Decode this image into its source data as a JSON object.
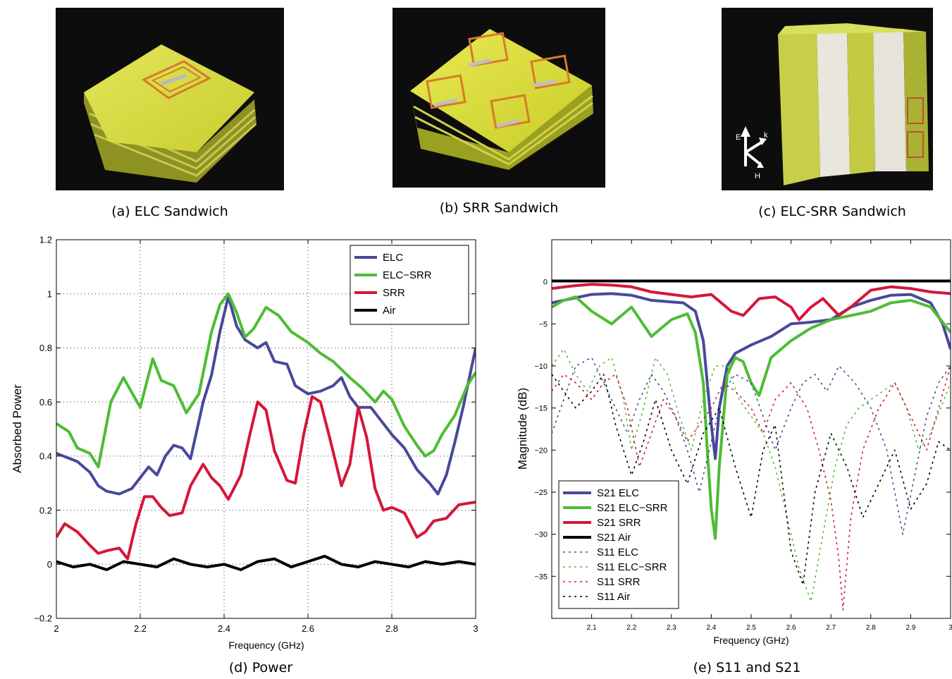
{
  "captions": {
    "a": "(a) ELC Sandwich",
    "b": "(b) SRR Sandwich",
    "c": "(c) ELC-SRR Sandwich",
    "d": "(d) Power",
    "e": "(e) S11 and S21"
  },
  "photo_c_axes": {
    "e": "E",
    "k": "k",
    "h": "H"
  },
  "chart_data": [
    {
      "type": "line",
      "xlabel": "Frequency (GHz)",
      "ylabel": "Absorbed Power",
      "xlim": [
        2,
        3
      ],
      "ylim": [
        -0.2,
        1.2
      ],
      "xticks": [
        2,
        2.2,
        2.4,
        2.6,
        2.8,
        3
      ],
      "yticks": [
        -0.2,
        0,
        0.2,
        0.4,
        0.6,
        0.8,
        1,
        1.2
      ],
      "xtick_labels": [
        "2",
        "2.2",
        "2.4",
        "2.6",
        "2.8",
        "3"
      ],
      "ytick_labels": [
        "−0.2",
        "0",
        "0.2",
        "0.4",
        "0.6",
        "0.8",
        "1",
        "1.2"
      ],
      "grid": "dotted",
      "legend": "top-right",
      "series": [
        {
          "name": "ELC",
          "color": "#48499b",
          "style": "solid",
          "x": [
            2.0,
            2.05,
            2.08,
            2.1,
            2.12,
            2.15,
            2.18,
            2.2,
            2.22,
            2.24,
            2.26,
            2.28,
            2.3,
            2.32,
            2.35,
            2.37,
            2.39,
            2.41,
            2.43,
            2.45,
            2.48,
            2.5,
            2.52,
            2.55,
            2.57,
            2.6,
            2.63,
            2.66,
            2.68,
            2.7,
            2.72,
            2.75,
            2.78,
            2.8,
            2.83,
            2.86,
            2.89,
            2.91,
            2.93,
            2.95,
            2.97,
            3.0
          ],
          "y": [
            0.41,
            0.38,
            0.34,
            0.29,
            0.27,
            0.26,
            0.28,
            0.32,
            0.36,
            0.33,
            0.4,
            0.44,
            0.43,
            0.39,
            0.6,
            0.7,
            0.86,
            0.99,
            0.88,
            0.83,
            0.8,
            0.82,
            0.75,
            0.74,
            0.66,
            0.63,
            0.64,
            0.66,
            0.69,
            0.62,
            0.58,
            0.58,
            0.52,
            0.48,
            0.43,
            0.35,
            0.3,
            0.26,
            0.33,
            0.45,
            0.58,
            0.8
          ]
        },
        {
          "name": "ELC−SRR",
          "color": "#4dbd33",
          "style": "solid",
          "x": [
            2.0,
            2.03,
            2.05,
            2.08,
            2.1,
            2.13,
            2.16,
            2.2,
            2.23,
            2.25,
            2.28,
            2.31,
            2.34,
            2.37,
            2.39,
            2.41,
            2.43,
            2.45,
            2.47,
            2.5,
            2.53,
            2.56,
            2.6,
            2.63,
            2.66,
            2.7,
            2.73,
            2.76,
            2.78,
            2.8,
            2.83,
            2.86,
            2.88,
            2.9,
            2.92,
            2.95,
            2.98,
            3.0
          ],
          "y": [
            0.52,
            0.49,
            0.43,
            0.41,
            0.36,
            0.6,
            0.69,
            0.58,
            0.76,
            0.68,
            0.66,
            0.56,
            0.63,
            0.86,
            0.96,
            1.0,
            0.93,
            0.84,
            0.87,
            0.95,
            0.92,
            0.86,
            0.82,
            0.78,
            0.75,
            0.69,
            0.65,
            0.6,
            0.64,
            0.61,
            0.51,
            0.44,
            0.4,
            0.42,
            0.48,
            0.55,
            0.66,
            0.71
          ]
        },
        {
          "name": "SRR",
          "color": "#d41739",
          "style": "solid",
          "x": [
            2.0,
            2.02,
            2.05,
            2.08,
            2.1,
            2.12,
            2.15,
            2.17,
            2.19,
            2.21,
            2.23,
            2.25,
            2.27,
            2.3,
            2.32,
            2.35,
            2.37,
            2.39,
            2.41,
            2.44,
            2.46,
            2.48,
            2.5,
            2.52,
            2.55,
            2.57,
            2.59,
            2.61,
            2.63,
            2.65,
            2.68,
            2.7,
            2.72,
            2.74,
            2.76,
            2.78,
            2.8,
            2.83,
            2.86,
            2.88,
            2.9,
            2.93,
            2.96,
            3.0
          ],
          "y": [
            0.1,
            0.15,
            0.12,
            0.07,
            0.04,
            0.05,
            0.06,
            0.02,
            0.15,
            0.25,
            0.25,
            0.21,
            0.18,
            0.19,
            0.29,
            0.37,
            0.32,
            0.29,
            0.24,
            0.33,
            0.47,
            0.6,
            0.57,
            0.42,
            0.31,
            0.3,
            0.48,
            0.62,
            0.6,
            0.48,
            0.29,
            0.37,
            0.58,
            0.47,
            0.28,
            0.2,
            0.21,
            0.19,
            0.1,
            0.12,
            0.16,
            0.17,
            0.22,
            0.23
          ]
        },
        {
          "name": "Air",
          "color": "#000000",
          "style": "solid",
          "x": [
            2.0,
            2.04,
            2.08,
            2.12,
            2.16,
            2.2,
            2.24,
            2.28,
            2.32,
            2.36,
            2.4,
            2.44,
            2.48,
            2.52,
            2.56,
            2.6,
            2.64,
            2.68,
            2.72,
            2.76,
            2.8,
            2.84,
            2.88,
            2.92,
            2.96,
            3.0
          ],
          "y": [
            0.01,
            -0.01,
            0.0,
            -0.02,
            0.01,
            0.0,
            -0.01,
            0.02,
            0.0,
            -0.01,
            0.0,
            -0.02,
            0.01,
            0.02,
            -0.01,
            0.01,
            0.03,
            0.0,
            -0.01,
            0.01,
            0.0,
            -0.01,
            0.01,
            0.0,
            0.01,
            0.0
          ]
        }
      ]
    },
    {
      "type": "line",
      "xlabel": "Frequency (GHz)",
      "ylabel": "Magnitude (dB)",
      "xlim": [
        2,
        3
      ],
      "ylim": [
        -40,
        5
      ],
      "xticks": [
        2.1,
        2.2,
        2.3,
        2.4,
        2.5,
        2.6,
        2.7,
        2.8,
        2.9,
        3
      ],
      "yticks": [
        -35,
        -30,
        -25,
        -20,
        -15,
        -10,
        -5,
        0
      ],
      "xtick_labels": [
        "2.1",
        "2.2",
        "2.3",
        "2.4",
        "2.5",
        "2.6",
        "2.7",
        "2.8",
        "2.9",
        "3"
      ],
      "ytick_labels": [
        "−35",
        "−30",
        "−25",
        "−20",
        "−15",
        "−10",
        "−5",
        "0"
      ],
      "grid": "off",
      "legend": "bottom-left",
      "series": [
        {
          "name": "S21 ELC",
          "color": "#48499b",
          "style": "solid",
          "x": [
            2.0,
            2.05,
            2.1,
            2.15,
            2.2,
            2.25,
            2.3,
            2.33,
            2.36,
            2.38,
            2.39,
            2.4,
            2.41,
            2.42,
            2.44,
            2.46,
            2.5,
            2.55,
            2.6,
            2.65,
            2.7,
            2.75,
            2.8,
            2.85,
            2.9,
            2.95,
            2.98,
            3.0
          ],
          "y": [
            -2.5,
            -2.0,
            -1.5,
            -1.4,
            -1.6,
            -2.2,
            -2.4,
            -2.5,
            -3.5,
            -7.0,
            -12.0,
            -17.0,
            -21.0,
            -15.0,
            -10.0,
            -8.5,
            -7.5,
            -6.5,
            -5.0,
            -4.8,
            -4.5,
            -3.0,
            -2.2,
            -1.6,
            -1.5,
            -2.5,
            -5.0,
            -8.0
          ]
        },
        {
          "name": "S21 ELC−SRR",
          "color": "#4dbd33",
          "style": "solid",
          "x": [
            2.0,
            2.03,
            2.06,
            2.1,
            2.15,
            2.2,
            2.25,
            2.3,
            2.34,
            2.36,
            2.38,
            2.39,
            2.4,
            2.41,
            2.42,
            2.44,
            2.46,
            2.48,
            2.5,
            2.52,
            2.55,
            2.6,
            2.65,
            2.7,
            2.75,
            2.8,
            2.85,
            2.9,
            2.95,
            3.0
          ],
          "y": [
            -3.0,
            -2.2,
            -1.8,
            -3.5,
            -5.0,
            -3.0,
            -6.5,
            -4.5,
            -3.8,
            -6.0,
            -12.0,
            -20.0,
            -27.0,
            -30.5,
            -22.0,
            -11.0,
            -9.0,
            -9.5,
            -12.0,
            -13.5,
            -9.0,
            -7.0,
            -5.5,
            -4.5,
            -4.0,
            -3.5,
            -2.5,
            -2.2,
            -3.0,
            -6.0
          ]
        },
        {
          "name": "S21 SRR",
          "color": "#d41739",
          "style": "solid",
          "x": [
            2.0,
            2.05,
            2.1,
            2.15,
            2.2,
            2.25,
            2.3,
            2.35,
            2.4,
            2.45,
            2.48,
            2.52,
            2.56,
            2.6,
            2.62,
            2.65,
            2.68,
            2.72,
            2.75,
            2.8,
            2.85,
            2.9,
            2.95,
            3.0
          ],
          "y": [
            -0.8,
            -0.5,
            -0.3,
            -0.4,
            -0.6,
            -1.2,
            -1.5,
            -1.8,
            -1.5,
            -3.5,
            -4.0,
            -2.0,
            -1.8,
            -3.0,
            -4.5,
            -3.0,
            -2.0,
            -4.0,
            -3.0,
            -1.0,
            -0.6,
            -0.8,
            -1.2,
            -1.4
          ]
        },
        {
          "name": "S21 Air",
          "color": "#000000",
          "style": "solid",
          "x": [
            2.0,
            3.0
          ],
          "y": [
            0.1,
            0.1
          ]
        },
        {
          "name": "S11 ELC",
          "color": "#48499b",
          "style": "dotted",
          "x": [
            2.0,
            2.03,
            2.06,
            2.1,
            2.13,
            2.16,
            2.19,
            2.22,
            2.25,
            2.28,
            2.31,
            2.34,
            2.37,
            2.4,
            2.43,
            2.46,
            2.5,
            2.53,
            2.56,
            2.6,
            2.63,
            2.66,
            2.69,
            2.72,
            2.76,
            2.8,
            2.84,
            2.88,
            2.91,
            2.94,
            2.97,
            3.0
          ],
          "y": [
            -18,
            -14,
            -10,
            -9,
            -12,
            -15,
            -18,
            -14,
            -11,
            -13,
            -16,
            -20,
            -25,
            -19,
            -13,
            -11,
            -12,
            -16,
            -20,
            -15,
            -12,
            -11,
            -13,
            -10,
            -12,
            -15,
            -20,
            -30,
            -23,
            -16,
            -12,
            -10
          ]
        },
        {
          "name": "S11 ELC−SRR",
          "color": "#4dbd33",
          "style": "dotted",
          "x": [
            2.0,
            2.03,
            2.06,
            2.09,
            2.12,
            2.15,
            2.18,
            2.2,
            2.23,
            2.26,
            2.29,
            2.32,
            2.35,
            2.38,
            2.41,
            2.44,
            2.47,
            2.5,
            2.53,
            2.56,
            2.59,
            2.62,
            2.65,
            2.68,
            2.71,
            2.74,
            2.77,
            2.8,
            2.83,
            2.86,
            2.89,
            2.92,
            2.95,
            3.0
          ],
          "y": [
            -10,
            -8,
            -11,
            -13,
            -10,
            -9,
            -14,
            -20,
            -15,
            -9,
            -11,
            -16,
            -20,
            -14,
            -10,
            -10,
            -14,
            -16,
            -18,
            -22,
            -28,
            -34,
            -38,
            -30,
            -22,
            -17,
            -15,
            -14,
            -13,
            -12,
            -15,
            -20,
            -18,
            -12
          ]
        },
        {
          "name": "S11 SRR",
          "color": "#d41739",
          "style": "dotted",
          "x": [
            2.0,
            2.03,
            2.06,
            2.1,
            2.13,
            2.16,
            2.19,
            2.22,
            2.25,
            2.28,
            2.31,
            2.34,
            2.37,
            2.4,
            2.43,
            2.46,
            2.5,
            2.53,
            2.56,
            2.6,
            2.64,
            2.67,
            2.7,
            2.72,
            2.73,
            2.75,
            2.78,
            2.82,
            2.86,
            2.9,
            2.94,
            2.97,
            3.0
          ],
          "y": [
            -13,
            -11,
            -12,
            -14,
            -12,
            -11,
            -15,
            -22,
            -18,
            -14,
            -16,
            -19,
            -17,
            -15,
            -12,
            -13,
            -15,
            -18,
            -14,
            -12,
            -15,
            -20,
            -26,
            -33,
            -39,
            -28,
            -20,
            -15,
            -12,
            -16,
            -20,
            -15,
            -10
          ]
        },
        {
          "name": "S11 Air",
          "color": "#000000",
          "style": "dotted",
          "x": [
            2.0,
            2.03,
            2.06,
            2.1,
            2.13,
            2.16,
            2.2,
            2.23,
            2.26,
            2.3,
            2.34,
            2.38,
            2.42,
            2.46,
            2.5,
            2.53,
            2.56,
            2.6,
            2.63,
            2.66,
            2.7,
            2.74,
            2.78,
            2.82,
            2.86,
            2.9,
            2.94,
            2.97,
            3.0
          ],
          "y": [
            -11,
            -13,
            -15,
            -13,
            -11,
            -17,
            -23,
            -19,
            -14,
            -20,
            -24,
            -18,
            -15,
            -22,
            -28,
            -20,
            -17,
            -32,
            -36,
            -25,
            -18,
            -22,
            -28,
            -24,
            -20,
            -27,
            -24,
            -19,
            -20
          ]
        }
      ]
    }
  ]
}
